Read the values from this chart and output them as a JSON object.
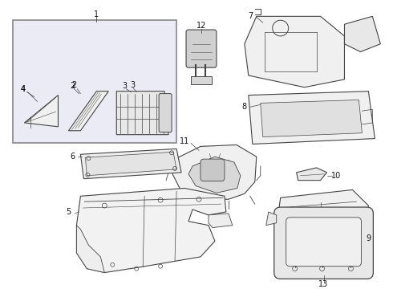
{
  "bg_color": "#ffffff",
  "line_color": "#444444",
  "box_fill": "#e8e8f0",
  "fig_width": 4.9,
  "fig_height": 3.6,
  "dpi": 100
}
